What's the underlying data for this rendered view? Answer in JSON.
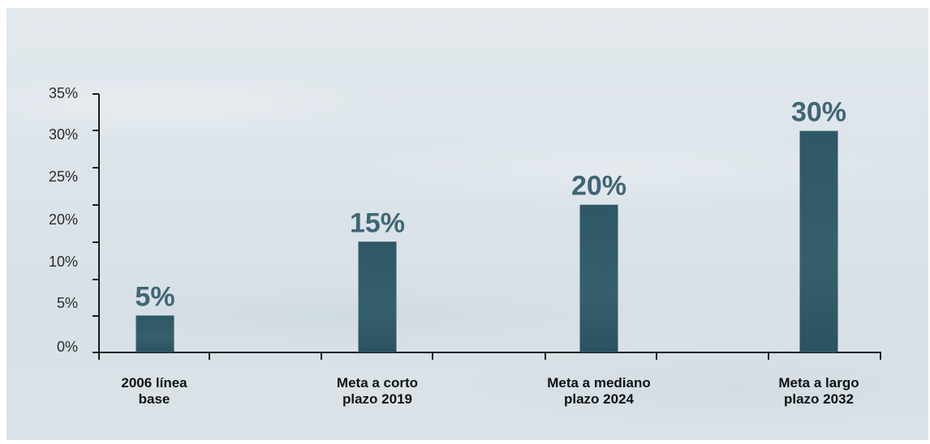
{
  "chart_data": {
    "type": "bar",
    "categories": [
      [
        "2006 línea",
        "base"
      ],
      [
        "Meta a corto",
        "plazo 2019"
      ],
      [
        "Meta a mediano",
        "plazo 2024"
      ],
      [
        "Meta a largo",
        "plazo 2032"
      ]
    ],
    "values": [
      5,
      15,
      20,
      30
    ],
    "data_labels": [
      "5%",
      "15%",
      "20%",
      "30%"
    ],
    "y_ticks": [
      "0%",
      "5%",
      "10%",
      "20%",
      "25%",
      "30%",
      "35%"
    ],
    "ylim": [
      0,
      35
    ],
    "title": "",
    "xlabel": "",
    "ylabel": "",
    "grid": false,
    "colors": {
      "bar": "#2f5664",
      "data_label": "#3f6675"
    }
  }
}
